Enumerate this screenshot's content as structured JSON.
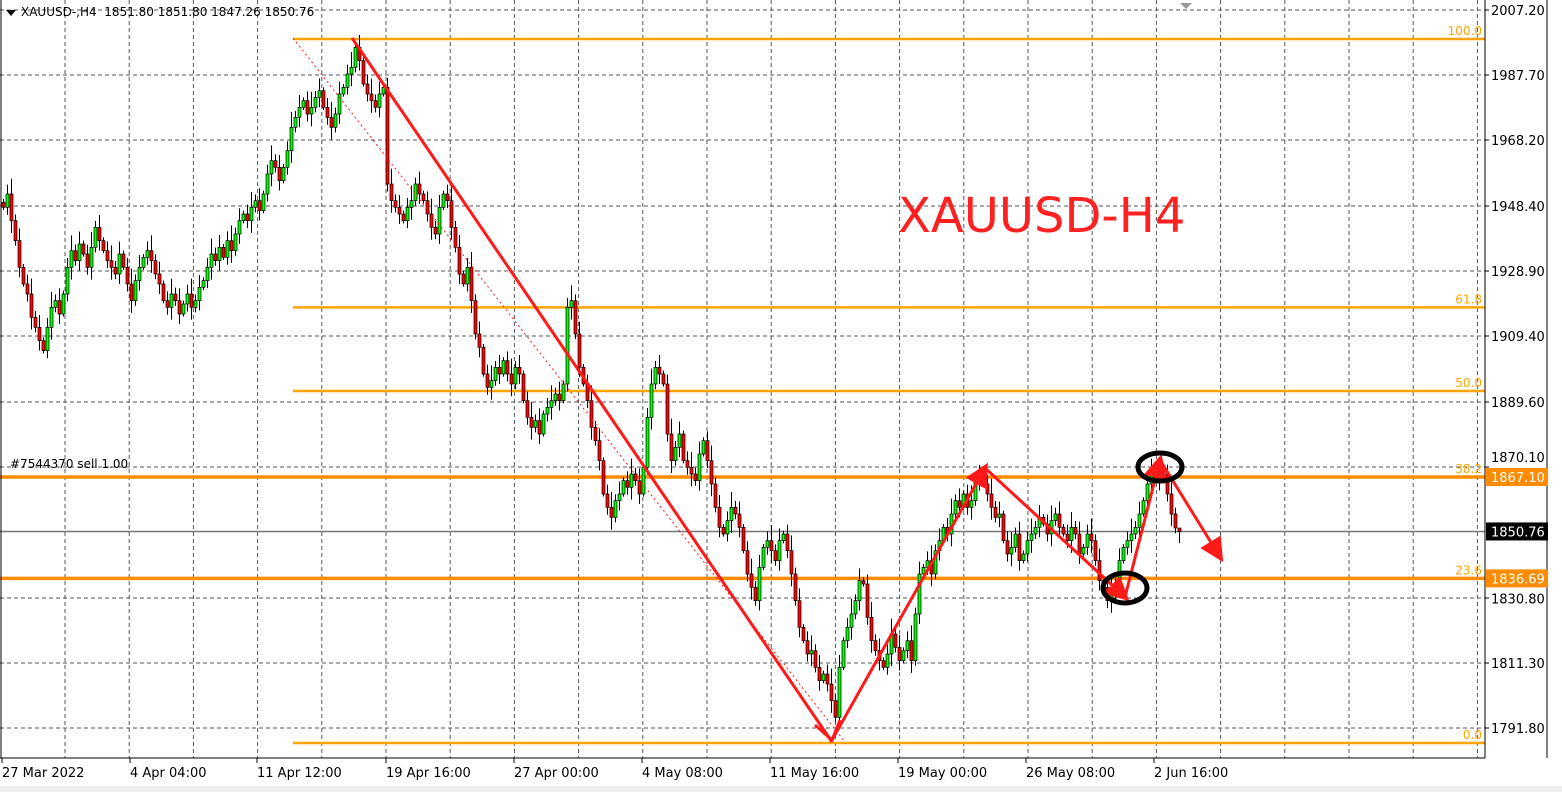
{
  "header": {
    "symbol": "XAUUSD-,H4",
    "ohlc": "1851.80 1851.80 1847.26 1850.76"
  },
  "annotation_title": "XAUUSD-H4",
  "order_label": "#7544370 sell 1.00",
  "colors": {
    "bull": "#00ff00",
    "bear": "#ff0000",
    "fib": "#ffa500",
    "order_line": "#ff8c00",
    "drawing": "#ff1a1a",
    "ellipse": "#000000",
    "grid": "#555555"
  },
  "chart_data": {
    "type": "candlestick",
    "title": "XAUUSD-,H4",
    "y_axis": {
      "position": "right",
      "ticks": [
        "2007.20",
        "1987.70",
        "1968.20",
        "1948.40",
        "1928.90",
        "1909.40",
        "1889.60",
        "1870.10",
        "1830.80",
        "1811.30",
        "1791.80"
      ],
      "range": [
        1786,
        2010
      ]
    },
    "x_axis": {
      "ticks": [
        "27 Mar 2022",
        "4 Apr 04:00",
        "11 Apr 12:00",
        "19 Apr 16:00",
        "27 Apr 00:00",
        "4 May 08:00",
        "11 May 16:00",
        "19 May 00:00",
        "26 May 08:00",
        "2 Jun 16:00"
      ]
    },
    "grid": true,
    "last_bar": {
      "open": 1851.8,
      "high": 1851.8,
      "low": 1847.26,
      "close": 1850.76
    },
    "price_tags": [
      {
        "label": "1867.10",
        "price": 1867.1,
        "color": "#ff8c00"
      },
      {
        "label": "1850.76",
        "price": 1850.76,
        "color": "#000000"
      },
      {
        "label": "1836.69",
        "price": 1836.69,
        "color": "#ff8c00"
      }
    ],
    "fibonacci": [
      {
        "level": "100.0",
        "price": 1998.5
      },
      {
        "level": "61.8",
        "price": 1918.0
      },
      {
        "level": "50.0",
        "price": 1892.9
      },
      {
        "level": "38.2",
        "price": 1867.1
      },
      {
        "level": "23.6",
        "price": 1836.69
      },
      {
        "level": "0.0",
        "price": 1787.3
      }
    ],
    "closes": [
      1948,
      1952,
      1944,
      1938,
      1930,
      1925,
      1922,
      1915,
      1912,
      1908,
      1905,
      1912,
      1918,
      1920,
      1916,
      1922,
      1930,
      1935,
      1932,
      1937,
      1934,
      1930,
      1936,
      1942,
      1938,
      1935,
      1932,
      1930,
      1928,
      1934,
      1930,
      1925,
      1920,
      1926,
      1930,
      1933,
      1935,
      1932,
      1928,
      1925,
      1920,
      1918,
      1922,
      1920,
      1916,
      1919,
      1922,
      1918,
      1920,
      1924,
      1926,
      1930,
      1934,
      1932,
      1936,
      1933,
      1938,
      1935,
      1940,
      1944,
      1946,
      1944,
      1948,
      1950,
      1947,
      1952,
      1958,
      1962,
      1960,
      1956,
      1960,
      1965,
      1972,
      1975,
      1978,
      1980,
      1976,
      1978,
      1981,
      1983,
      1978,
      1975,
      1972,
      1976,
      1982,
      1984,
      1988,
      1990,
      1996,
      1992,
      1985,
      1982,
      1980,
      1978,
      1982,
      1984,
      1955,
      1950,
      1948,
      1946,
      1944,
      1948,
      1950,
      1955,
      1952,
      1950,
      1946,
      1942,
      1940,
      1948,
      1952,
      1950,
      1942,
      1936,
      1928,
      1925,
      1930,
      1920,
      1910,
      1906,
      1898,
      1894,
      1896,
      1900,
      1898,
      1902,
      1898,
      1895,
      1900,
      1898,
      1890,
      1885,
      1882,
      1884,
      1880,
      1886,
      1888,
      1890,
      1892,
      1890,
      1895,
      1918,
      1920,
      1910,
      1900,
      1895,
      1890,
      1882,
      1878,
      1872,
      1862,
      1858,
      1855,
      1860,
      1862,
      1866,
      1864,
      1868,
      1866,
      1862,
      1870,
      1885,
      1895,
      1900,
      1898,
      1895,
      1880,
      1872,
      1876,
      1880,
      1872,
      1870,
      1868,
      1866,
      1874,
      1878,
      1872,
      1865,
      1858,
      1852,
      1850,
      1854,
      1858,
      1856,
      1852,
      1845,
      1838,
      1834,
      1830,
      1840,
      1846,
      1848,
      1845,
      1842,
      1848,
      1850,
      1845,
      1838,
      1830,
      1822,
      1818,
      1814,
      1815,
      1810,
      1806,
      1808,
      1805,
      1800,
      1795,
      1810,
      1818,
      1822,
      1826,
      1830,
      1836,
      1835,
      1825,
      1818,
      1815,
      1812,
      1810,
      1814,
      1820,
      1816,
      1812,
      1815,
      1818,
      1812,
      1826,
      1838,
      1840,
      1842,
      1838,
      1845,
      1848,
      1852,
      1850,
      1856,
      1860,
      1858,
      1862,
      1858,
      1860,
      1866,
      1867,
      1865,
      1862,
      1858,
      1855,
      1856,
      1848,
      1844,
      1846,
      1850,
      1842,
      1844,
      1848,
      1850,
      1852,
      1855,
      1853,
      1850,
      1854,
      1856,
      1852,
      1850,
      1848,
      1852,
      1850,
      1844,
      1846,
      1850,
      1848,
      1842,
      1836,
      1834,
      1830,
      1832,
      1835,
      1842,
      1846,
      1848,
      1850,
      1852,
      1856,
      1860,
      1865,
      1868,
      1867,
      1866,
      1868,
      1862,
      1856,
      1851.8,
      1850.76
    ]
  }
}
